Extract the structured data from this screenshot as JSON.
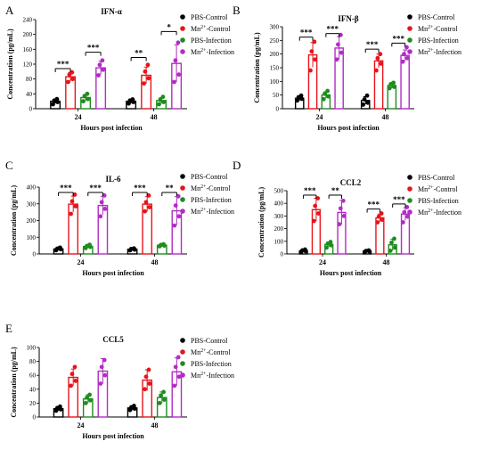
{
  "colors": {
    "PBS-Control": "#000000",
    "Mn2+-Control": "#e8141a",
    "PBS-Infection": "#1e8c1e",
    "Mn2+-Infection": "#b22cc6"
  },
  "legend": [
    {
      "key": "PBS-Control",
      "base": "PBS-Control",
      "sup": ""
    },
    {
      "key": "Mn2+-Control",
      "base": "Mn",
      "sup": "2+",
      "rest": "-Control"
    },
    {
      "key": "PBS-Infection",
      "base": "PBS-Infection",
      "sup": ""
    },
    {
      "key": "Mn2+-Infection",
      "base": "Mn",
      "sup": "2+",
      "rest": "-Infection"
    }
  ],
  "chart_data": [
    {
      "letter": "A",
      "type": "bar",
      "title": "IFN-α",
      "xlabel": "Hours post infection",
      "ylabel": "Concentration (pg/mL)",
      "categories": [
        "24",
        "48"
      ],
      "ylim": [
        0,
        240
      ],
      "yticks": [
        0,
        40,
        80,
        120,
        160,
        200,
        240
      ],
      "series": [
        {
          "name": "PBS-Control",
          "values": [
            20,
            20
          ],
          "err": [
            6,
            5
          ],
          "points": [
            [
              12,
              18,
              22,
              26
            ],
            [
              14,
              18,
              22,
              25
            ]
          ]
        },
        {
          "name": "Mn2+-Control",
          "values": [
            86,
            90
          ],
          "err": [
            12,
            22
          ],
          "points": [
            [
              72,
              80,
              92,
              98
            ],
            [
              68,
              82,
              100,
              118
            ]
          ]
        },
        {
          "name": "PBS-Infection",
          "values": [
            30,
            22
          ],
          "err": [
            8,
            8
          ],
          "points": [
            [
              20,
              26,
              34,
              40
            ],
            [
              12,
              18,
              24,
              32
            ]
          ]
        },
        {
          "name": "Mn2+-Infection",
          "values": [
            110,
            122
          ],
          "err": [
            18,
            50
          ],
          "points": [
            [
              90,
              105,
              118,
              130
            ],
            [
              72,
              92,
              130,
              178
            ]
          ]
        }
      ],
      "sig": [
        {
          "cat": 0,
          "from": 0,
          "to": 1,
          "label": "***",
          "y": 108
        },
        {
          "cat": 0,
          "from": 2,
          "to": 3,
          "label": "***",
          "y": 152
        },
        {
          "cat": 1,
          "from": 0,
          "to": 1,
          "label": "**",
          "y": 138
        },
        {
          "cat": 1,
          "from": 2,
          "to": 3,
          "label": "*",
          "y": 208
        }
      ]
    },
    {
      "letter": "B",
      "type": "bar",
      "title": "IFN-β",
      "xlabel": "Hours post infection",
      "ylabel": "Concentration (pg/mL)",
      "categories": [
        "24",
        "48"
      ],
      "ylim": [
        0,
        300
      ],
      "yticks": [
        0,
        50,
        100,
        150,
        200,
        250,
        300
      ],
      "series": [
        {
          "name": "PBS-Control",
          "values": [
            38,
            30
          ],
          "err": [
            8,
            14
          ],
          "points": [
            [
              30,
              36,
              42,
              48
            ],
            [
              15,
              22,
              34,
              48
            ]
          ]
        },
        {
          "name": "Mn2+-Control",
          "values": [
            197,
            175
          ],
          "err": [
            45,
            25
          ],
          "points": [
            [
              140,
              180,
              210,
              245
            ],
            [
              140,
              165,
              185,
              200
            ]
          ]
        },
        {
          "name": "PBS-Infection",
          "values": [
            50,
            85
          ],
          "err": [
            12,
            10
          ],
          "points": [
            [
              35,
              45,
              55,
              65
            ],
            [
              75,
              80,
              90,
              95
            ]
          ]
        },
        {
          "name": "Mn2+-Infection",
          "values": [
            222,
            195
          ],
          "err": [
            42,
            20
          ],
          "points": [
            [
              180,
              205,
              235,
              270
            ],
            [
              172,
              185,
              200,
              225
            ]
          ]
        }
      ],
      "sig": [
        {
          "cat": 0,
          "from": 0,
          "to": 1,
          "label": "***",
          "y": 262
        },
        {
          "cat": 0,
          "from": 2,
          "to": 3,
          "label": "***",
          "y": 275
        },
        {
          "cat": 1,
          "from": 0,
          "to": 1,
          "label": "***",
          "y": 218
        },
        {
          "cat": 1,
          "from": 2,
          "to": 3,
          "label": "***",
          "y": 240
        }
      ]
    },
    {
      "letter": "C",
      "type": "bar",
      "title": "IL-6",
      "xlabel": "Hours post infection",
      "ylabel": "Concentration (pg/mL)",
      "categories": [
        "24",
        "48"
      ],
      "ylim": [
        0,
        400
      ],
      "yticks": [
        0,
        100,
        200,
        300,
        400
      ],
      "series": [
        {
          "name": "PBS-Control",
          "values": [
            30,
            28
          ],
          "err": [
            6,
            4
          ],
          "points": [
            [
              22,
              28,
              32,
              38
            ],
            [
              22,
              26,
              30,
              33
            ]
          ]
        },
        {
          "name": "Mn2+-Control",
          "values": [
            298,
            298
          ],
          "err": [
            48,
            45
          ],
          "points": [
            [
              240,
              285,
              315,
              355
            ],
            [
              255,
              280,
              310,
              350
            ]
          ]
        },
        {
          "name": "PBS-Infection",
          "values": [
            45,
            52
          ],
          "err": [
            8,
            5
          ],
          "points": [
            [
              35,
              42,
              48,
              55
            ],
            [
              46,
              50,
              54,
              58
            ]
          ]
        },
        {
          "name": "Mn2+-Infection",
          "values": [
            290,
            258
          ],
          "err": [
            55,
            85
          ],
          "points": [
            [
              225,
              270,
              310,
              350
            ],
            [
              170,
              225,
              290,
              345
            ]
          ]
        }
      ],
      "sig": [
        {
          "cat": 0,
          "from": 0,
          "to": 1,
          "label": "***",
          "y": 368
        },
        {
          "cat": 0,
          "from": 2,
          "to": 3,
          "label": "***",
          "y": 368
        },
        {
          "cat": 1,
          "from": 0,
          "to": 1,
          "label": "***",
          "y": 368
        },
        {
          "cat": 1,
          "from": 2,
          "to": 3,
          "label": "**",
          "y": 368
        }
      ]
    },
    {
      "letter": "D",
      "type": "bar",
      "title": "CCL2",
      "xlabel": "Hours post infection",
      "ylabel": "Concentration (pg/mL)",
      "categories": [
        "24",
        "48"
      ],
      "ylim": [
        0,
        500
      ],
      "yticks": [
        0,
        100,
        200,
        300,
        400,
        500
      ],
      "series": [
        {
          "name": "PBS-Control",
          "values": [
            25,
            22
          ],
          "err": [
            8,
            5
          ],
          "points": [
            [
              15,
              22,
              28,
              35
            ],
            [
              16,
              20,
              24,
              28
            ]
          ]
        },
        {
          "name": "Mn2+-Control",
          "values": [
            350,
            285
          ],
          "err": [
            90,
            30
          ],
          "points": [
            [
              260,
              320,
              380,
              440
            ],
            [
              250,
              270,
              295,
              320
            ]
          ]
        },
        {
          "name": "PBS-Infection",
          "values": [
            75,
            72
          ],
          "err": [
            20,
            45
          ],
          "points": [
            [
              50,
              68,
              82,
              95
            ],
            [
              25,
              50,
              90,
              120
            ]
          ]
        },
        {
          "name": "Mn2+-Infection",
          "values": [
            328,
            315
          ],
          "err": [
            95,
            50
          ],
          "points": [
            [
              235,
              300,
              360,
              420
            ],
            [
              250,
              295,
              330,
              370
            ]
          ]
        }
      ],
      "sig": [
        {
          "cat": 0,
          "from": 0,
          "to": 1,
          "label": "***",
          "y": 465
        },
        {
          "cat": 0,
          "from": 2,
          "to": 3,
          "label": "**",
          "y": 465
        },
        {
          "cat": 1,
          "from": 0,
          "to": 1,
          "label": "***",
          "y": 355
        },
        {
          "cat": 1,
          "from": 2,
          "to": 3,
          "label": "***",
          "y": 395
        }
      ]
    },
    {
      "letter": "E",
      "type": "bar",
      "title": "CCL5",
      "xlabel": "Hours post infection",
      "ylabel": "Concentration (pg/mL)",
      "categories": [
        "24",
        "48"
      ],
      "ylim": [
        0,
        100
      ],
      "yticks": [
        0,
        20,
        40,
        60,
        80,
        100
      ],
      "series": [
        {
          "name": "PBS-Control",
          "values": [
            12,
            13
          ],
          "err": [
            3,
            3
          ],
          "points": [
            [
              9,
              11,
              13,
              15
            ],
            [
              10,
              12,
              14,
              16
            ]
          ]
        },
        {
          "name": "Mn2+-Control",
          "values": [
            57,
            53
          ],
          "err": [
            12,
            15
          ],
          "points": [
            [
              45,
              52,
              62,
              72
            ],
            [
              40,
              48,
              58,
              68
            ]
          ]
        },
        {
          "name": "PBS-Infection",
          "values": [
            26,
            28
          ],
          "err": [
            6,
            8
          ],
          "points": [
            [
              20,
              24,
              28,
              32
            ],
            [
              20,
              25,
              31,
              36
            ]
          ]
        },
        {
          "name": "Mn2+-Infection",
          "values": [
            66,
            65
          ],
          "err": [
            18,
            20
          ],
          "points": [
            [
              48,
              60,
              72,
              82
            ],
            [
              45,
              58,
              72,
              86
            ]
          ]
        }
      ],
      "sig": []
    }
  ]
}
